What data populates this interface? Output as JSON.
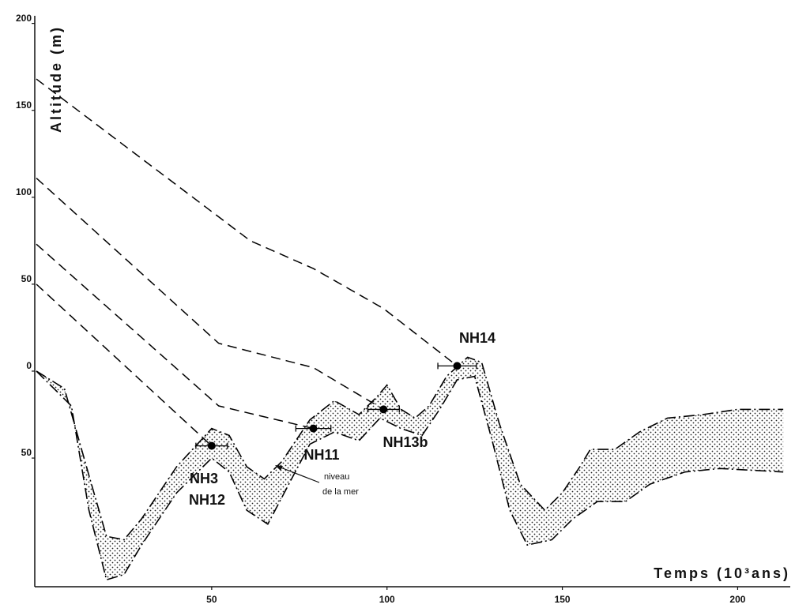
{
  "chart_data": {
    "type": "line",
    "ylabel": "Altitude (m)",
    "xlabel": "Temps (10³ans)",
    "xlim": [
      0,
      215
    ],
    "ylim": [
      -124,
      203
    ],
    "xticks": [
      50,
      100,
      150,
      200
    ],
    "yticks": [
      {
        "value": -50,
        "label": "50"
      },
      0,
      50,
      100,
      150,
      200
    ],
    "series": [
      {
        "color": "#000000",
        "dash": "dash-dot",
        "x": [
          0,
          8,
          15,
          20,
          25,
          30,
          40,
          50,
          55,
          60,
          65,
          70,
          78,
          85,
          92,
          97,
          100,
          104,
          108,
          112,
          117,
          123,
          127,
          132,
          138,
          145,
          150,
          155,
          158,
          165,
          172,
          180,
          190,
          200,
          213
        ],
        "values": [
          0,
          -10,
          -60,
          -95,
          -97,
          -85,
          -55,
          -33,
          -37,
          -55,
          -62,
          -52,
          -28,
          -17,
          -25,
          -15,
          -8,
          -22,
          -27,
          -20,
          -3,
          8,
          5,
          -30,
          -65,
          -80,
          -70,
          -55,
          -45,
          -45,
          -35,
          -27,
          -25,
          -22,
          -22
        ]
      },
      {
        "color": "#000000",
        "dash": "dash-dot",
        "x": [
          0,
          10,
          15,
          20,
          25,
          30,
          40,
          50,
          55,
          60,
          66,
          72,
          78,
          85,
          92,
          98,
          104,
          110,
          115,
          120,
          125,
          130,
          135,
          140,
          147,
          153,
          160,
          168,
          175,
          185,
          195,
          213
        ],
        "values": [
          0,
          -20,
          -80,
          -120,
          -117,
          -100,
          -70,
          -50,
          -58,
          -80,
          -88,
          -65,
          -42,
          -35,
          -40,
          -27,
          -33,
          -37,
          -22,
          -5,
          -3,
          -40,
          -80,
          -100,
          -97,
          -85,
          -75,
          -75,
          -65,
          -58,
          -56,
          -58
        ]
      }
    ],
    "terraces": [
      {
        "color": "#000000",
        "x": [
          0,
          61,
          79,
          99,
          120
        ],
        "values": [
          168,
          75,
          59,
          36,
          3
        ]
      },
      {
        "color": "#000000",
        "x": [
          0,
          52,
          79,
          99
        ],
        "values": [
          111,
          16,
          2,
          -22
        ]
      },
      {
        "color": "#000000",
        "x": [
          0,
          52,
          79
        ],
        "values": [
          73,
          -20,
          -33
        ]
      },
      {
        "color": "#000000",
        "x": [
          0,
          50
        ],
        "values": [
          50,
          -43
        ]
      }
    ],
    "points": {
      "color": "#000000",
      "x": [
        50,
        79,
        99,
        120
      ],
      "values": [
        -43,
        -33,
        -22,
        3
      ],
      "xerr": [
        4.5,
        5,
        4.5,
        5.5
      ]
    },
    "annotations": [
      "NH3",
      "NH12",
      "NH11",
      "NH13b",
      "NH14",
      "niveau",
      "de la mer"
    ]
  }
}
